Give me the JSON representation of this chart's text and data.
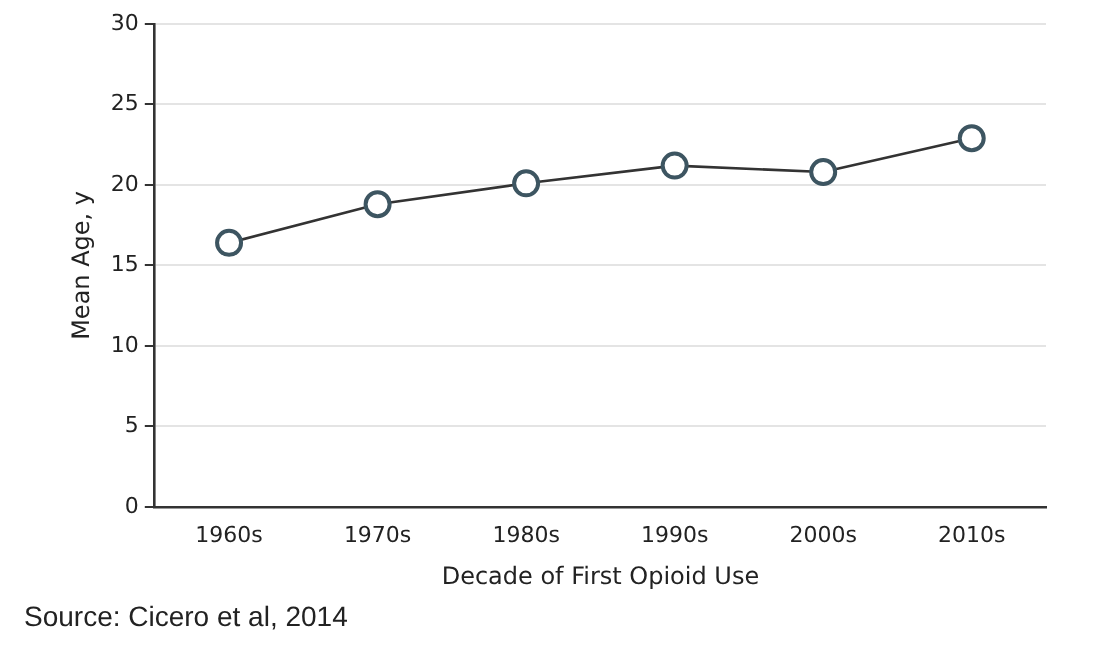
{
  "chart_data": {
    "type": "line",
    "xlabel": "Decade of First Opioid Use",
    "ylabel": "Mean Age, y",
    "categories": [
      "1960s",
      "1970s",
      "1980s",
      "1990s",
      "2000s",
      "2010s"
    ],
    "series": [
      {
        "color": "#3d5561",
        "values": [
          16.4,
          18.8,
          20.1,
          21.2,
          20.8,
          22.9
        ]
      }
    ],
    "ylim": [
      0,
      30
    ],
    "yticks": [
      0,
      5,
      10,
      15,
      20,
      25,
      30
    ],
    "grid": "y",
    "marker": "circle",
    "line_style": "solid",
    "legend": false,
    "annotations": [
      "Source: Cicero et al, 2014"
    ]
  }
}
